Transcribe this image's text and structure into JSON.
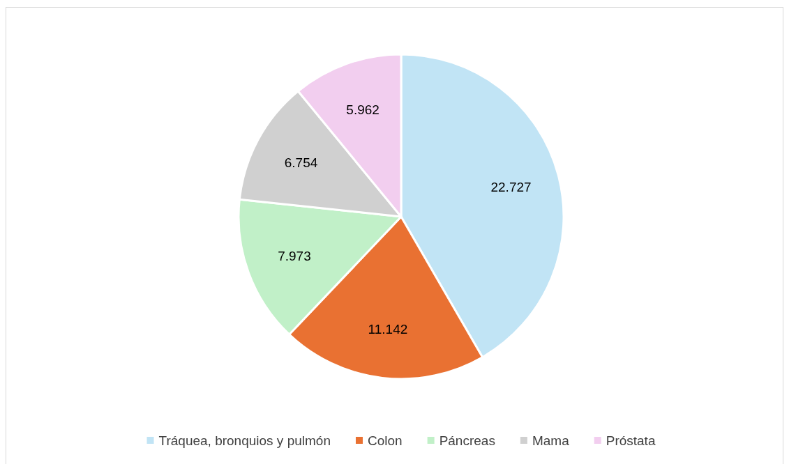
{
  "chart_data": {
    "type": "pie",
    "categories": [
      "Tráquea, bronquios y pulmón",
      "Colon",
      "Páncreas",
      "Mama",
      "Próstata"
    ],
    "values": [
      22727,
      11142,
      7973,
      6754,
      5962
    ],
    "value_labels": [
      "22.727",
      "11.142",
      "7.973",
      "6.754",
      "5.962"
    ],
    "colors": [
      "#c1e4f5",
      "#e97132",
      "#c1f0c8",
      "#d0d0d0",
      "#f2ceef"
    ],
    "legend": "bottom"
  }
}
